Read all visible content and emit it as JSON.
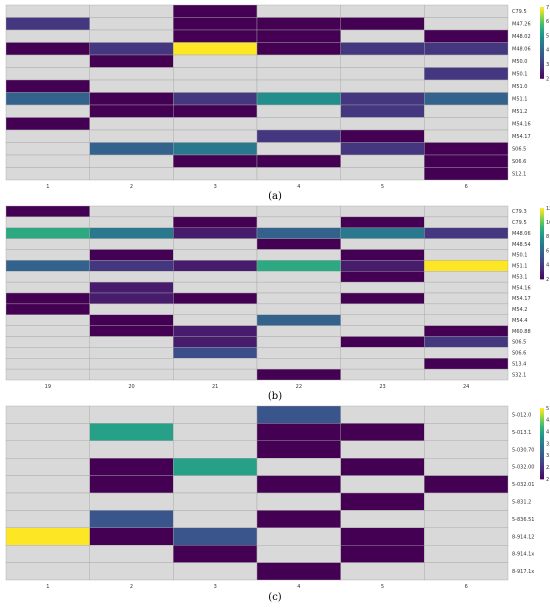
{
  "chart_data": [
    {
      "type": "heatmap",
      "caption": "(a)",
      "x_categories": [
        "1",
        "2",
        "3",
        "4",
        "5",
        "6"
      ],
      "y_categories": [
        "C79.5",
        "M47.26",
        "M48.02",
        "M48.06",
        "M50.0",
        "M50.1",
        "M51.0",
        "M51.1",
        "M51.2",
        "M54.16",
        "M54.17",
        "S06.5",
        "S06.6",
        "S12.1"
      ],
      "colorbar": {
        "ticks": [
          "7",
          "6",
          "5",
          "4",
          "3",
          "2"
        ],
        "min": 2,
        "max": 7
      },
      "cells": [
        [
          null,
          null,
          2,
          null,
          null,
          null
        ],
        [
          3,
          null,
          2,
          2,
          2,
          null
        ],
        [
          null,
          null,
          2,
          2,
          null,
          2
        ],
        [
          2,
          3,
          7,
          2,
          3,
          3
        ],
        [
          null,
          2,
          null,
          null,
          null,
          null
        ],
        [
          null,
          null,
          null,
          null,
          null,
          3
        ],
        [
          2,
          null,
          null,
          null,
          null,
          null
        ],
        [
          4,
          2,
          3,
          5,
          3,
          4
        ],
        [
          null,
          2,
          2,
          null,
          3,
          null
        ],
        [
          2,
          null,
          null,
          null,
          null,
          null
        ],
        [
          null,
          null,
          null,
          3,
          2,
          null
        ],
        [
          null,
          4,
          4.5,
          null,
          3,
          2
        ],
        [
          null,
          null,
          2,
          2,
          null,
          2
        ],
        [
          null,
          null,
          null,
          null,
          null,
          2
        ]
      ]
    },
    {
      "type": "heatmap",
      "caption": "(b)",
      "x_categories": [
        "19",
        "20",
        "21",
        "22",
        "23",
        "24"
      ],
      "y_categories": [
        "C79.3",
        "C79.5",
        "M48.06",
        "M48.54",
        "M50.1",
        "M51.1",
        "M53.1",
        "M54.16",
        "M54.17",
        "M54.2",
        "M54.4",
        "M60.88",
        "S06.5",
        "S06.6",
        "S13.4",
        "S32.1"
      ],
      "colorbar": {
        "ticks": [
          "12",
          "10",
          "8",
          "6",
          "4",
          "2"
        ],
        "min": 2,
        "max": 12
      },
      "cells": [
        [
          2,
          null,
          null,
          null,
          null,
          null
        ],
        [
          null,
          null,
          2,
          null,
          2,
          null
        ],
        [
          9,
          7,
          3,
          6,
          7,
          4
        ],
        [
          null,
          null,
          null,
          2,
          null,
          null
        ],
        [
          null,
          2,
          null,
          null,
          2,
          null
        ],
        [
          6,
          4,
          3,
          9,
          3,
          12
        ],
        [
          null,
          null,
          null,
          null,
          2,
          null
        ],
        [
          null,
          3,
          null,
          null,
          null,
          null
        ],
        [
          2,
          3,
          2,
          null,
          2,
          null
        ],
        [
          2,
          null,
          null,
          null,
          null,
          null
        ],
        [
          null,
          2,
          null,
          6,
          null,
          null
        ],
        [
          null,
          2,
          3,
          null,
          null,
          2
        ],
        [
          null,
          null,
          3,
          null,
          2,
          4
        ],
        [
          null,
          null,
          5,
          null,
          null,
          null
        ],
        [
          null,
          null,
          null,
          null,
          null,
          2
        ],
        [
          null,
          null,
          null,
          2,
          null,
          null
        ]
      ]
    },
    {
      "type": "heatmap",
      "caption": "(c)",
      "x_categories": [
        "1",
        "2",
        "3",
        "4",
        "5",
        "6"
      ],
      "y_categories": [
        "5-012.0",
        "5-013.1",
        "5-030.70",
        "5-032.00",
        "5-032.01",
        "5-831.2",
        "5-836.51",
        "8-914.12",
        "8-914.1x",
        "8-917.1x"
      ],
      "colorbar": {
        "ticks": [
          "5",
          "4.5",
          "4",
          "3.5",
          "3",
          "2.5",
          "2"
        ],
        "min": 2,
        "max": 5
      },
      "cells": [
        [
          null,
          null,
          null,
          3,
          null,
          null
        ],
        [
          null,
          4,
          null,
          2,
          2,
          null
        ],
        [
          null,
          null,
          null,
          2,
          null,
          null
        ],
        [
          null,
          2,
          4,
          null,
          2,
          null
        ],
        [
          null,
          2,
          null,
          2,
          null,
          2
        ],
        [
          null,
          null,
          null,
          null,
          2,
          null
        ],
        [
          null,
          3,
          null,
          2,
          null,
          null
        ],
        [
          5,
          2,
          3,
          null,
          2,
          null
        ],
        [
          null,
          null,
          2,
          null,
          2,
          null
        ],
        [
          null,
          null,
          null,
          2,
          null,
          null
        ]
      ]
    }
  ],
  "colors": {
    "empty_cell": "#d9d9d9",
    "grid_line": "#a6a6a6"
  }
}
